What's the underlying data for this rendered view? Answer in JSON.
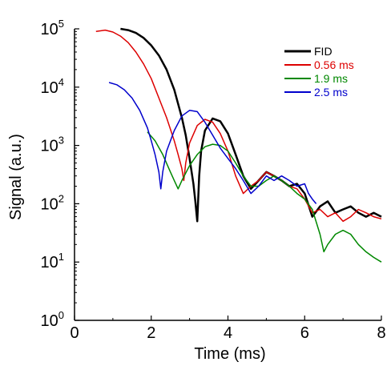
{
  "chart_data": {
    "type": "line",
    "title": "",
    "xlabel": "Time (ms)",
    "ylabel": "Signal (a.u.)",
    "xlim": [
      0,
      8
    ],
    "ylim": [
      1,
      100000
    ],
    "yscale": "log",
    "grid": false,
    "legend_position": "top-right",
    "x_ticks": [
      0,
      2,
      4,
      6,
      8
    ],
    "x_tick_labels": [
      "0",
      "2",
      "4",
      "6",
      "8"
    ],
    "y_ticks": [
      1,
      10,
      100,
      1000,
      10000,
      100000
    ],
    "y_tick_labels": [
      {
        "base": "10",
        "exp": "0"
      },
      {
        "base": "10",
        "exp": "1"
      },
      {
        "base": "10",
        "exp": "2"
      },
      {
        "base": "10",
        "exp": "3"
      },
      {
        "base": "10",
        "exp": "4"
      },
      {
        "base": "10",
        "exp": "5"
      }
    ],
    "series": [
      {
        "name": "FID",
        "color": "#000000",
        "x": [
          1.2,
          1.4,
          1.6,
          1.8,
          2.0,
          2.2,
          2.4,
          2.6,
          2.8,
          2.9,
          3.0,
          3.1,
          3.15,
          3.2,
          3.25,
          3.3,
          3.4,
          3.6,
          3.8,
          4.0,
          4.2,
          4.4,
          4.6,
          4.8,
          5.0,
          5.2,
          5.4,
          5.6,
          5.8,
          6.0,
          6.2,
          6.4,
          6.6,
          6.8,
          7.0,
          7.2,
          7.4,
          7.6,
          7.8,
          8.0
        ],
        "y": [
          100000,
          95000,
          85000,
          70000,
          52000,
          35000,
          20000,
          9000,
          3000,
          1500,
          600,
          220,
          110,
          50,
          300,
          800,
          1800,
          2900,
          2600,
          1600,
          700,
          300,
          180,
          250,
          350,
          300,
          250,
          200,
          220,
          150,
          60,
          90,
          110,
          70,
          80,
          90,
          70,
          60,
          70,
          60
        ]
      },
      {
        "name": "0.56 ms",
        "color": "#dd0000",
        "x": [
          0.56,
          0.8,
          1.0,
          1.2,
          1.4,
          1.6,
          1.8,
          2.0,
          2.2,
          2.4,
          2.6,
          2.7,
          2.8,
          2.85,
          2.9,
          3.0,
          3.2,
          3.4,
          3.6,
          3.8,
          4.0,
          4.2,
          4.4,
          4.6,
          4.8,
          5.0,
          5.2,
          5.4,
          5.6,
          5.8,
          6.0,
          6.2,
          6.4,
          6.6,
          6.8,
          7.0,
          7.2,
          7.4,
          7.6,
          7.8,
          8.0
        ],
        "y": [
          90000,
          95000,
          88000,
          75000,
          58000,
          40000,
          25000,
          14000,
          6500,
          3000,
          1200,
          700,
          400,
          250,
          500,
          1100,
          2200,
          2800,
          2500,
          1600,
          800,
          300,
          150,
          200,
          250,
          350,
          300,
          250,
          200,
          180,
          120,
          70,
          80,
          60,
          70,
          50,
          60,
          80,
          70,
          60,
          55
        ]
      },
      {
        "name": "1.9 ms",
        "color": "#008800",
        "x": [
          1.9,
          2.1,
          2.3,
          2.5,
          2.6,
          2.7,
          2.8,
          3.0,
          3.2,
          3.4,
          3.6,
          3.8,
          4.0,
          4.2,
          4.4,
          4.6,
          4.8,
          5.0,
          5.2,
          5.4,
          5.6,
          5.8,
          6.0,
          6.2,
          6.4,
          6.5,
          6.6,
          6.8,
          7.0,
          7.2,
          7.4,
          7.6,
          7.8,
          8.0
        ],
        "y": [
          1700,
          1200,
          700,
          350,
          250,
          180,
          250,
          450,
          700,
          950,
          1050,
          1000,
          800,
          500,
          300,
          200,
          200,
          250,
          300,
          250,
          200,
          150,
          120,
          80,
          30,
          15,
          20,
          30,
          35,
          30,
          20,
          15,
          12,
          10
        ]
      },
      {
        "name": "2.5 ms",
        "color": "#0000cc",
        "x": [
          0.9,
          1.1,
          1.3,
          1.5,
          1.7,
          1.9,
          2.0,
          2.1,
          2.2,
          2.25,
          2.3,
          2.4,
          2.6,
          2.8,
          3.0,
          3.2,
          3.4,
          3.6,
          3.8,
          4.0,
          4.2,
          4.4,
          4.6,
          4.8,
          5.0,
          5.2,
          5.4,
          5.6,
          5.8,
          6.0,
          6.1,
          6.2,
          6.3
        ],
        "y": [
          12000,
          11000,
          9000,
          6500,
          4000,
          2000,
          1200,
          700,
          350,
          180,
          350,
          800,
          1800,
          3200,
          4000,
          3800,
          2500,
          1500,
          900,
          600,
          400,
          250,
          150,
          200,
          300,
          250,
          300,
          250,
          200,
          220,
          150,
          120,
          100
        ]
      }
    ]
  }
}
